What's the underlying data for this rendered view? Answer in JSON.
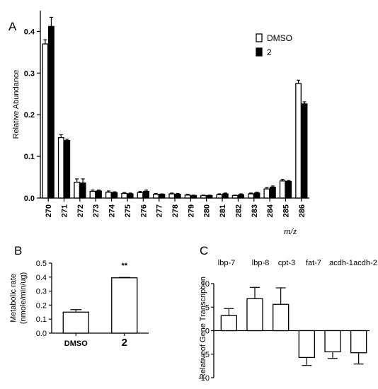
{
  "panels": {
    "a": {
      "letter": "A"
    },
    "b": {
      "letter": "B"
    },
    "c": {
      "letter": "C"
    }
  },
  "chart_data": [
    {
      "panel": "A",
      "type": "bar",
      "ylabel": "Relative Abundance",
      "xlabel": "m/z",
      "ylim": [
        0,
        0.45
      ],
      "yticks": [
        "0.0",
        "0.1",
        "0.2",
        "0.3",
        "0.4"
      ],
      "categories": [
        "270",
        "271",
        "272",
        "273",
        "274",
        "275",
        "276",
        "277",
        "278",
        "279",
        "280",
        "281",
        "282",
        "283",
        "284",
        "285",
        "286"
      ],
      "legend_position": "top-right",
      "series": [
        {
          "name": "DMSO",
          "fill": "#ffffff",
          "values": [
            0.37,
            0.145,
            0.038,
            0.016,
            0.014,
            0.011,
            0.013,
            0.009,
            0.01,
            0.007,
            0.006,
            0.008,
            0.006,
            0.01,
            0.022,
            0.041,
            0.275
          ],
          "errors": [
            0.01,
            0.007,
            0.008,
            0.003,
            0.003,
            0.002,
            0.003,
            0.002,
            0.002,
            0.002,
            0.001,
            0.002,
            0.001,
            0.002,
            0.003,
            0.004,
            0.008
          ]
        },
        {
          "name": "2",
          "fill": "#000000",
          "values": [
            0.412,
            0.138,
            0.036,
            0.017,
            0.013,
            0.01,
            0.016,
            0.009,
            0.009,
            0.006,
            0.006,
            0.01,
            0.008,
            0.012,
            0.026,
            0.04,
            0.226
          ],
          "errors": [
            0.022,
            0.003,
            0.01,
            0.002,
            0.002,
            0.002,
            0.003,
            0.001,
            0.002,
            0.001,
            0.001,
            0.002,
            0.002,
            0.002,
            0.003,
            0.002,
            0.005
          ]
        }
      ]
    },
    {
      "panel": "B",
      "type": "bar",
      "ylabel": "Metabolic rate\n(nmole/min/ug)",
      "ylim": [
        0,
        0.5
      ],
      "yticks": [
        "0.0",
        "0.1",
        "0.2",
        "0.3",
        "0.4",
        "0.5"
      ],
      "categories": [
        "DMSO",
        "2"
      ],
      "values": [
        0.15,
        0.395
      ],
      "errors": [
        0.018,
        0.003
      ],
      "annotations": [
        "",
        "**"
      ]
    },
    {
      "panel": "C",
      "type": "bar",
      "ylabel": "Relativeof Gene Transcription",
      "ylim": [
        -10,
        10
      ],
      "yticks": [
        "-10",
        "-5",
        "0",
        "5",
        "10"
      ],
      "categories": [
        "lbp-7",
        "lbp-8",
        "cpt-3",
        "fat-7",
        "acdh-1",
        "acdh-2"
      ],
      "values": [
        3.2,
        6.8,
        5.6,
        -5.7,
        -4.5,
        -4.7
      ],
      "errors": [
        1.5,
        2.4,
        3.5,
        1.7,
        1.4,
        2.4
      ]
    }
  ]
}
